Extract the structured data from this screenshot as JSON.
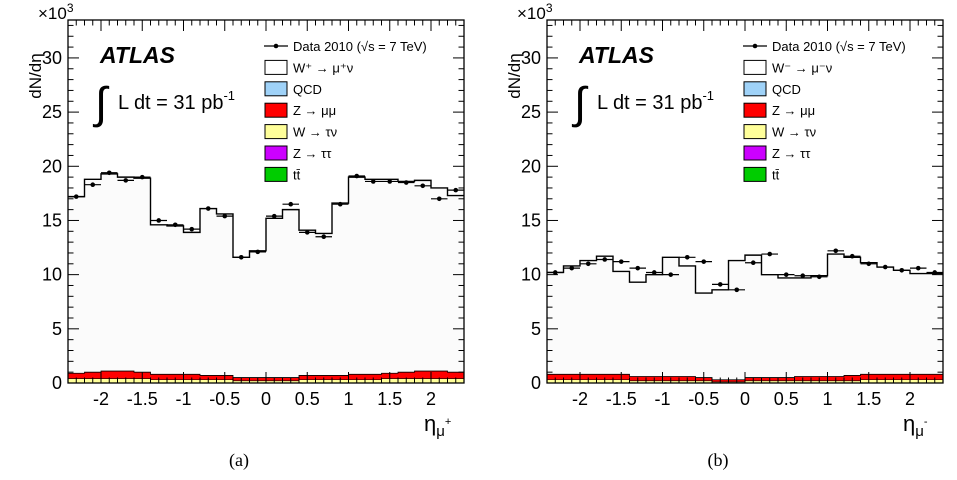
{
  "chart_data": [
    {
      "type": "bar",
      "caption": "(a)",
      "ylabel": "dN/dη",
      "y_multiplier": "×10",
      "y_multiplier_exp": "3",
      "xlabel": "η",
      "xlabel_sub": "μ",
      "xlabel_sup": "+",
      "xlim": [
        -2.4,
        2.4
      ],
      "ylim": [
        0,
        33.5
      ],
      "x_ticks": [
        -2,
        -1.5,
        -1,
        -0.5,
        0,
        0.5,
        1,
        1.5,
        2
      ],
      "x_tick_labels": [
        "-2",
        "-1.5",
        "-1",
        "-0.5",
        "0",
        "0.5",
        "1",
        "1.5",
        "2"
      ],
      "y_ticks": [
        0,
        5,
        10,
        15,
        20,
        25,
        30
      ],
      "y_tick_labels": [
        "0",
        "5",
        "10",
        "15",
        "20",
        "25",
        "30"
      ],
      "experiment_label": "ATLAS",
      "lumi_label": "L dt = 31 pb",
      "lumi_exp": "-1",
      "legend": [
        {
          "label": "Data 2010 (√s = 7 TeV)",
          "kind": "data"
        },
        {
          "label": "W⁺ → μ⁺ν",
          "kind": "box",
          "color": "#ffffff"
        },
        {
          "label": "QCD",
          "kind": "box",
          "color": "#9fd2f8"
        },
        {
          "label": "Z → μμ",
          "kind": "box",
          "color": "#ff0000"
        },
        {
          "label": "W → τν",
          "kind": "box",
          "color": "#ffff9a"
        },
        {
          "label": "Z → ττ",
          "kind": "box",
          "color": "#cc00ff"
        },
        {
          "label": "tt̄",
          "kind": "box",
          "color": "#00cc00"
        }
      ],
      "bin_edges": [
        -2.4,
        -2.2,
        -2.0,
        -1.8,
        -1.6,
        -1.4,
        -1.2,
        -1.0,
        -0.8,
        -0.6,
        -0.4,
        -0.2,
        0.0,
        0.2,
        0.4,
        0.6,
        0.8,
        1.0,
        1.2,
        1.4,
        1.6,
        1.8,
        2.0,
        2.2,
        2.4
      ],
      "series": [
        {
          "name": "W⁺ → μ⁺ν",
          "color": "#ffffff",
          "values": [
            17.2,
            18.8,
            19.3,
            19.0,
            18.9,
            14.6,
            14.5,
            13.9,
            16.1,
            15.6,
            11.6,
            12.2,
            15.2,
            16.0,
            14.1,
            13.8,
            16.6,
            19.0,
            18.8,
            18.8,
            18.6,
            18.7,
            18.0,
            17.3
          ]
        },
        {
          "name": "Z → μμ",
          "color": "#ff0000",
          "values": [
            0.5,
            0.6,
            0.7,
            0.7,
            0.6,
            0.5,
            0.5,
            0.5,
            0.4,
            0.4,
            0.3,
            0.3,
            0.3,
            0.3,
            0.4,
            0.4,
            0.4,
            0.5,
            0.5,
            0.5,
            0.6,
            0.7,
            0.7,
            0.6
          ]
        },
        {
          "name": "W → τν",
          "color": "#ffff9a",
          "values": [
            0.4,
            0.4,
            0.4,
            0.4,
            0.4,
            0.3,
            0.3,
            0.3,
            0.3,
            0.3,
            0.2,
            0.2,
            0.2,
            0.2,
            0.3,
            0.3,
            0.3,
            0.3,
            0.3,
            0.4,
            0.4,
            0.4,
            0.4,
            0.4
          ]
        },
        {
          "name": "Data 2010 (√s = 7 TeV)",
          "kind": "data",
          "values": [
            17.2,
            18.3,
            19.4,
            18.7,
            19.0,
            15.0,
            14.6,
            14.2,
            16.1,
            15.4,
            11.6,
            12.1,
            15.4,
            16.5,
            13.9,
            13.5,
            16.5,
            19.1,
            18.6,
            18.6,
            18.5,
            18.2,
            17.0,
            17.8
          ]
        }
      ]
    },
    {
      "type": "bar",
      "caption": "(b)",
      "ylabel": "dN/dη",
      "y_multiplier": "×10",
      "y_multiplier_exp": "3",
      "xlabel": "η",
      "xlabel_sub": "μ",
      "xlabel_sup": "-",
      "xlim": [
        -2.4,
        2.4
      ],
      "ylim": [
        0,
        33.5
      ],
      "x_ticks": [
        -2,
        -1.5,
        -1,
        -0.5,
        0,
        0.5,
        1,
        1.5,
        2
      ],
      "x_tick_labels": [
        "-2",
        "-1.5",
        "-1",
        "-0.5",
        "0",
        "0.5",
        "1",
        "1.5",
        "2"
      ],
      "y_ticks": [
        0,
        5,
        10,
        15,
        20,
        25,
        30
      ],
      "y_tick_labels": [
        "0",
        "5",
        "10",
        "15",
        "20",
        "25",
        "30"
      ],
      "experiment_label": "ATLAS",
      "lumi_label": "L dt = 31 pb",
      "lumi_exp": "-1",
      "legend": [
        {
          "label": "Data 2010 (√s = 7 TeV)",
          "kind": "data"
        },
        {
          "label": "W⁻ → μ⁻ν",
          "kind": "box",
          "color": "#ffffff"
        },
        {
          "label": "QCD",
          "kind": "box",
          "color": "#9fd2f8"
        },
        {
          "label": "Z → μμ",
          "kind": "box",
          "color": "#ff0000"
        },
        {
          "label": "W → τν",
          "kind": "box",
          "color": "#ffff9a"
        },
        {
          "label": "Z → ττ",
          "kind": "box",
          "color": "#cc00ff"
        },
        {
          "label": "tt̄",
          "kind": "box",
          "color": "#00cc00"
        }
      ],
      "bin_edges": [
        -2.4,
        -2.2,
        -2.0,
        -1.8,
        -1.6,
        -1.4,
        -1.2,
        -1.0,
        -0.8,
        -0.6,
        -0.4,
        -0.2,
        0.0,
        0.2,
        0.4,
        0.6,
        0.8,
        1.0,
        1.2,
        1.4,
        1.6,
        1.8,
        2.0,
        2.2,
        2.4
      ],
      "series": [
        {
          "name": "W⁻ → μ⁻ν",
          "color": "#ffffff",
          "values": [
            10.2,
            10.8,
            11.3,
            11.7,
            10.3,
            9.3,
            10.0,
            11.6,
            10.8,
            8.3,
            8.6,
            11.3,
            11.8,
            10.0,
            9.7,
            9.7,
            9.9,
            11.9,
            11.6,
            11.1,
            10.7,
            10.4,
            10.1,
            10.1
          ]
        },
        {
          "name": "Z → μμ",
          "color": "#ff0000",
          "values": [
            0.5,
            0.5,
            0.5,
            0.5,
            0.5,
            0.4,
            0.4,
            0.4,
            0.4,
            0.3,
            0.2,
            0.2,
            0.3,
            0.3,
            0.3,
            0.4,
            0.4,
            0.4,
            0.5,
            0.5,
            0.5,
            0.5,
            0.5,
            0.5
          ]
        },
        {
          "name": "W → τν",
          "color": "#ffff9a",
          "values": [
            0.3,
            0.3,
            0.3,
            0.3,
            0.3,
            0.2,
            0.2,
            0.2,
            0.2,
            0.2,
            0.1,
            0.1,
            0.2,
            0.2,
            0.2,
            0.2,
            0.2,
            0.2,
            0.2,
            0.3,
            0.3,
            0.3,
            0.3,
            0.3
          ]
        },
        {
          "name": "Data 2010 (√s = 7 TeV)",
          "kind": "data",
          "values": [
            10.2,
            10.6,
            11.0,
            11.4,
            11.2,
            10.6,
            10.2,
            10.0,
            11.6,
            11.2,
            9.1,
            8.6,
            11.1,
            11.9,
            10.0,
            9.9,
            9.8,
            12.2,
            11.7,
            11.0,
            10.7,
            10.4,
            10.6,
            10.2
          ]
        }
      ]
    }
  ]
}
